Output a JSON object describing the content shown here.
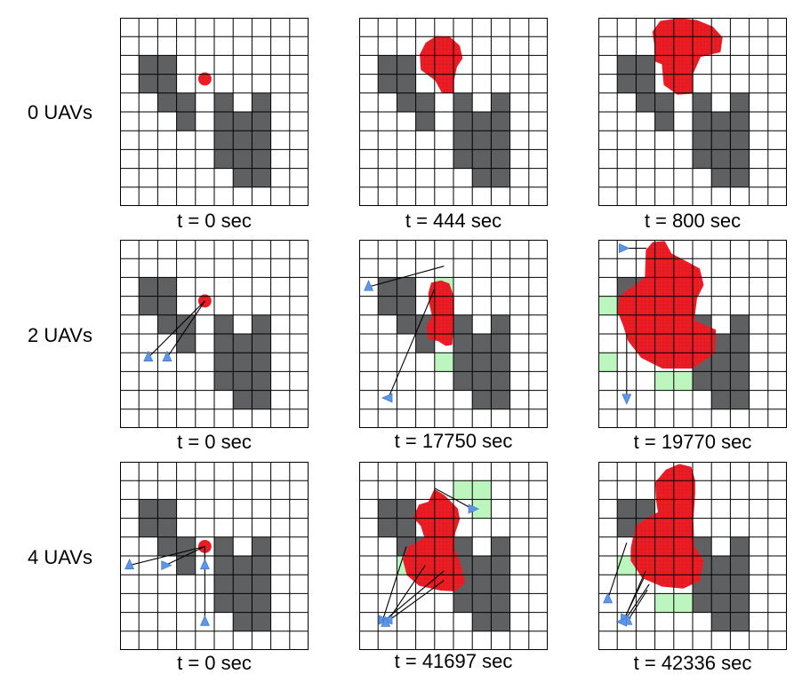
{
  "rows": [
    {
      "label": "0 UAVs",
      "panels": [
        {
          "caption": "t = 0 sec",
          "fire": {
            "kind": "dot",
            "cx": 4.5,
            "cy": 3.25,
            "r": 0.35
          },
          "green": [],
          "uavs": [],
          "lines": []
        },
        {
          "caption": "t = 444 sec",
          "fire": {
            "kind": "blob",
            "points": [
              [
                3.25,
                1.95
              ],
              [
                3.55,
                1.35
              ],
              [
                4.1,
                1.0
              ],
              [
                4.8,
                1.05
              ],
              [
                5.3,
                1.5
              ],
              [
                5.45,
                2.15
              ],
              [
                5.15,
                2.6
              ],
              [
                5.0,
                3.3
              ],
              [
                5.0,
                3.95
              ],
              [
                4.4,
                3.95
              ],
              [
                4.05,
                3.3
              ],
              [
                3.3,
                2.75
              ]
            ]
          },
          "green": [],
          "uavs": [],
          "lines": []
        },
        {
          "caption": "t = 800 sec",
          "fire": {
            "kind": "blob",
            "points": [
              [
                2.9,
                0.75
              ],
              [
                3.3,
                0.2
              ],
              [
                4.3,
                0.05
              ],
              [
                5.2,
                0.15
              ],
              [
                6.05,
                0.5
              ],
              [
                6.55,
                1.05
              ],
              [
                6.45,
                1.8
              ],
              [
                5.4,
                2.05
              ],
              [
                5.0,
                2.95
              ],
              [
                5.0,
                4.0
              ],
              [
                4.2,
                4.05
              ],
              [
                3.5,
                3.55
              ],
              [
                3.4,
                2.45
              ],
              [
                3.05,
                2.3
              ],
              [
                3.0,
                1.4
              ]
            ]
          },
          "green": [],
          "uavs": [],
          "lines": []
        }
      ]
    },
    {
      "label": "2 UAVs",
      "panels": [
        {
          "caption": "t = 0 sec",
          "fire": {
            "kind": "dot",
            "cx": 4.5,
            "cy": 3.25,
            "r": 0.35
          },
          "green": [],
          "uavs": [
            {
              "x": 1.5,
              "y": 6.25,
              "dir": "up"
            },
            {
              "x": 2.5,
              "y": 6.25,
              "dir": "up"
            }
          ],
          "lines": [
            [
              4.5,
              3.25,
              1.5,
              6.25
            ],
            [
              4.5,
              3.25,
              2.5,
              6.25
            ]
          ]
        },
        {
          "caption": "t = 17750 sec",
          "fire": {
            "kind": "blob",
            "points": [
              [
                3.7,
                2.85
              ],
              [
                3.85,
                2.3
              ],
              [
                4.35,
                2.2
              ],
              [
                4.75,
                2.35
              ],
              [
                5.0,
                3.05
              ],
              [
                5.0,
                4.2
              ],
              [
                4.9,
                5.55
              ],
              [
                4.6,
                5.6
              ],
              [
                4.2,
                5.35
              ],
              [
                3.7,
                5.25
              ],
              [
                3.6,
                4.6
              ],
              [
                3.9,
                4.05
              ],
              [
                3.75,
                3.4
              ]
            ]
          },
          "green": [
            [
              4,
              2
            ],
            [
              4,
              6
            ],
            [
              3,
              5
            ]
          ],
          "uavs": [
            {
              "x": 0.5,
              "y": 2.5,
              "dir": "up"
            },
            {
              "x": 1.55,
              "y": 8.4,
              "dir": "left"
            }
          ],
          "lines": [
            [
              0.5,
              2.5,
              4.5,
              1.4
            ],
            [
              1.55,
              8.4,
              4.0,
              2.6
            ]
          ]
        },
        {
          "caption": "t = 19770 sec",
          "fire": {
            "kind": "blob",
            "points": [
              [
                2.55,
                0.55
              ],
              [
                2.9,
                0.15
              ],
              [
                3.5,
                0.1
              ],
              [
                3.85,
                0.75
              ],
              [
                4.7,
                1.2
              ],
              [
                5.35,
                1.55
              ],
              [
                5.55,
                2.4
              ],
              [
                5.2,
                3.1
              ],
              [
                5.05,
                4.3
              ],
              [
                6.2,
                4.8
              ],
              [
                6.15,
                6.0
              ],
              [
                5.0,
                6.8
              ],
              [
                3.4,
                6.8
              ],
              [
                2.3,
                6.25
              ],
              [
                1.6,
                5.35
              ],
              [
                1.35,
                4.55
              ],
              [
                1.05,
                3.8
              ],
              [
                1.15,
                3.0
              ],
              [
                1.7,
                2.6
              ],
              [
                2.5,
                2.05
              ]
            ]
          },
          "green": [
            [
              0,
              3
            ],
            [
              1,
              3
            ],
            [
              0,
              6
            ],
            [
              3,
              7
            ],
            [
              4,
              7
            ],
            [
              5,
              7
            ]
          ],
          "uavs": [
            {
              "x": 1.3,
              "y": 0.45,
              "dir": "right"
            },
            {
              "x": 1.5,
              "y": 8.4,
              "dir": "down"
            }
          ],
          "lines": [
            [
              1.3,
              0.45,
              2.55,
              0.45
            ],
            [
              1.5,
              8.4,
              1.5,
              5.0
            ]
          ]
        }
      ]
    },
    {
      "label": "4 UAVs",
      "panels": [
        {
          "caption": "t = 0 sec",
          "fire": {
            "kind": "dot",
            "cx": 4.5,
            "cy": 4.5,
            "r": 0.35
          },
          "green": [],
          "uavs": [
            {
              "x": 0.5,
              "y": 5.5,
              "dir": "up"
            },
            {
              "x": 2.4,
              "y": 5.5,
              "dir": "right"
            },
            {
              "x": 4.5,
              "y": 5.5,
              "dir": "up"
            },
            {
              "x": 4.5,
              "y": 8.5,
              "dir": "up"
            }
          ],
          "lines": [
            [
              4.5,
              4.5,
              0.5,
              5.5
            ],
            [
              4.5,
              4.5,
              2.4,
              5.5
            ],
            [
              4.5,
              4.5,
              4.5,
              5.5
            ],
            [
              4.5,
              4.5,
              4.5,
              8.5
            ]
          ]
        },
        {
          "caption": "t = 41697 sec",
          "fire": {
            "kind": "blob",
            "points": [
              [
                2.9,
                2.95
              ],
              [
                3.2,
                2.3
              ],
              [
                3.7,
                2.15
              ],
              [
                4.0,
                1.5
              ],
              [
                4.5,
                1.8
              ],
              [
                5.2,
                2.5
              ],
              [
                5.3,
                3.05
              ],
              [
                5.05,
                3.8
              ],
              [
                5.0,
                4.6
              ],
              [
                5.3,
                5.3
              ],
              [
                5.6,
                6.4
              ],
              [
                5.1,
                6.85
              ],
              [
                4.3,
                6.8
              ],
              [
                3.2,
                6.55
              ],
              [
                2.55,
                6.0
              ],
              [
                2.35,
                5.2
              ],
              [
                2.65,
                4.5
              ],
              [
                3.1,
                4.3
              ],
              [
                3.5,
                4.05
              ],
              [
                3.3,
                3.4
              ]
            ]
          },
          "green": [
            [
              5,
              1
            ],
            [
              6,
              1
            ],
            [
              6,
              2
            ],
            [
              2,
              5
            ]
          ],
          "uavs": [
            {
              "x": 6.0,
              "y": 2.5,
              "dir": "right"
            },
            {
              "x": 1.25,
              "y": 8.4,
              "dir": "right"
            },
            {
              "x": 1.55,
              "y": 8.4,
              "dir": "left"
            },
            {
              "x": 1.4,
              "y": 8.55,
              "dir": "up"
            }
          ],
          "lines": [
            [
              6.0,
              2.5,
              4.0,
              1.4
            ],
            [
              1.25,
              8.4,
              2.5,
              4.5
            ],
            [
              1.55,
              8.4,
              3.5,
              5.5
            ],
            [
              1.4,
              8.55,
              4.5,
              6.3
            ],
            [
              1.5,
              8.3,
              4.5,
              5.8
            ]
          ]
        },
        {
          "caption": "t = 42336 sec",
          "fire": {
            "kind": "blob",
            "points": [
              [
                3.05,
                1.1
              ],
              [
                3.6,
                0.45
              ],
              [
                4.3,
                0.15
              ],
              [
                4.9,
                0.3
              ],
              [
                5.1,
                1.0
              ],
              [
                5.1,
                1.7
              ],
              [
                5.0,
                3.1
              ],
              [
                5.05,
                4.5
              ],
              [
                5.55,
                5.25
              ],
              [
                5.35,
                6.3
              ],
              [
                4.5,
                6.7
              ],
              [
                3.4,
                6.6
              ],
              [
                2.35,
                6.15
              ],
              [
                1.75,
                5.25
              ],
              [
                1.75,
                4.6
              ],
              [
                2.0,
                3.4
              ],
              [
                2.55,
                3.05
              ],
              [
                3.2,
                2.7
              ],
              [
                3.1,
                2.05
              ]
            ]
          },
          "green": [
            [
              1,
              5
            ],
            [
              3,
              7
            ],
            [
              4,
              7
            ]
          ],
          "uavs": [
            {
              "x": 0.5,
              "y": 7.3,
              "dir": "up"
            },
            {
              "x": 1.4,
              "y": 8.3,
              "dir": "right"
            },
            {
              "x": 1.55,
              "y": 8.45,
              "dir": "up"
            },
            {
              "x": 1.3,
              "y": 8.5,
              "dir": "left"
            }
          ],
          "lines": [
            [
              0.5,
              7.3,
              1.5,
              4.3
            ],
            [
              1.4,
              8.3,
              2.5,
              5.8
            ],
            [
              1.55,
              8.45,
              2.6,
              6.8
            ],
            [
              1.3,
              8.5,
              2.4,
              6.2
            ],
            [
              1.45,
              8.35,
              2.7,
              6.5
            ]
          ]
        }
      ]
    }
  ],
  "colors": {
    "grid_line": "#000000",
    "obstacle": "#5f6062",
    "fire": "#ec1c24",
    "fire_dot_pattern": "#b0171c",
    "uav": "#5b96e8",
    "sensed_cell": "#bdf5bf",
    "uav_line": "#000000"
  }
}
